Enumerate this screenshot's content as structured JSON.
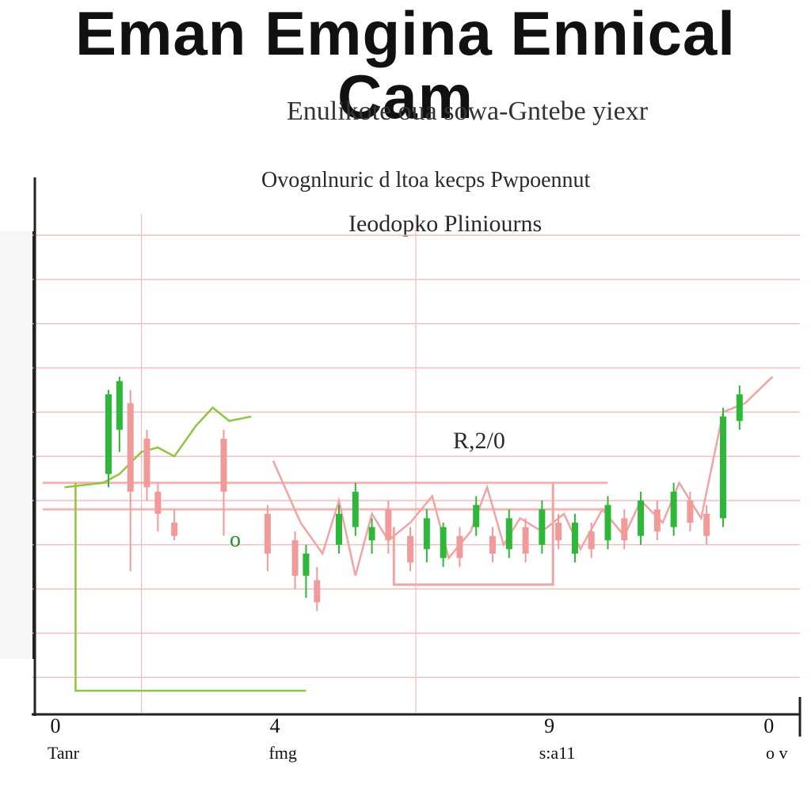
{
  "title": "Eman Emgina Ennical Cam",
  "subtitle": "Enulikote oua sowa-Gntebe yiexr",
  "notes": [
    "Ovognlnuric d ltoa kecps Pwpoennut",
    "Ieodopko Pliniourns"
  ],
  "annotations": [
    "R,2/0",
    "o"
  ],
  "x_ticks": [
    {
      "label": "0",
      "sub": "Tanr",
      "x": 0
    },
    {
      "label": "4",
      "sub": "fmg",
      "x": 4
    },
    {
      "label": "9",
      "sub": "s:a11",
      "x": 9
    },
    {
      "label": "0",
      "sub": "o v",
      "x": 13
    }
  ],
  "colors": {
    "up": "#2db83a",
    "down": "#f09a9a",
    "grid": "#f3bcbc",
    "axis": "#222222",
    "line_green": "#8dc63f",
    "line_pink": "#f2a3a3"
  },
  "chart_data": {
    "type": "line",
    "title": "Eman Emgina Ennical Cam",
    "subtitle": "Enulikote oua sowa-Gntebe yiexr",
    "xlabel": "",
    "ylabel": "",
    "xlim": [
      0,
      14
    ],
    "ylim": [
      0,
      12
    ],
    "grid": true,
    "legend": "none",
    "series": [
      {
        "values": [
          [
            0.6,
            5.1
          ],
          [
            1.3,
            5.2
          ],
          [
            1.6,
            5.4
          ],
          [
            2.0,
            5.9
          ],
          [
            2.3,
            6.0
          ],
          [
            2.6,
            5.8
          ],
          [
            3.0,
            6.5
          ],
          [
            3.3,
            6.9
          ],
          [
            3.6,
            6.6
          ],
          [
            4.0,
            6.7
          ]
        ]
      },
      {
        "values": [
          [
            4.4,
            5.7
          ],
          [
            4.9,
            4.3
          ],
          [
            5.3,
            3.6
          ],
          [
            5.6,
            4.8
          ],
          [
            5.9,
            3.1
          ],
          [
            6.2,
            4.5
          ],
          [
            6.5,
            3.9
          ],
          [
            6.9,
            4.3
          ],
          [
            7.3,
            4.9
          ],
          [
            7.6,
            3.5
          ],
          [
            8.0,
            4.1
          ],
          [
            8.3,
            5.1
          ],
          [
            8.6,
            3.8
          ],
          [
            8.9,
            4.4
          ],
          [
            9.3,
            4.1
          ],
          [
            9.7,
            4.5
          ],
          [
            10.0,
            3.7
          ],
          [
            10.4,
            4.6
          ],
          [
            10.8,
            4.0
          ],
          [
            11.1,
            4.8
          ],
          [
            11.5,
            4.3
          ],
          [
            11.8,
            5.2
          ],
          [
            12.2,
            4.4
          ],
          [
            12.6,
            6.8
          ],
          [
            13.0,
            7.0
          ],
          [
            13.5,
            7.6
          ]
        ]
      }
    ],
    "candles": [
      {
        "x": 1.4,
        "open": 5.4,
        "close": 7.2,
        "high": 7.3,
        "low": 5.1
      },
      {
        "x": 1.6,
        "open": 6.4,
        "close": 7.5,
        "high": 7.6,
        "low": 5.9
      },
      {
        "x": 1.8,
        "open": 7.0,
        "close": 5.0,
        "high": 7.3,
        "low": 3.2
      },
      {
        "x": 2.1,
        "open": 6.2,
        "close": 5.1,
        "high": 6.4,
        "low": 4.8
      },
      {
        "x": 2.3,
        "open": 5.0,
        "close": 4.5,
        "high": 5.2,
        "low": 4.1
      },
      {
        "x": 2.6,
        "open": 4.3,
        "close": 4.0,
        "high": 4.6,
        "low": 3.9
      },
      {
        "x": 3.5,
        "open": 6.2,
        "close": 5.0,
        "high": 6.4,
        "low": 4.0
      },
      {
        "x": 4.3,
        "open": 4.5,
        "close": 3.6,
        "high": 4.7,
        "low": 3.2
      },
      {
        "x": 4.8,
        "open": 3.9,
        "close": 3.1,
        "high": 4.1,
        "low": 2.8
      },
      {
        "x": 5.0,
        "open": 3.1,
        "close": 3.6,
        "high": 3.8,
        "low": 2.6
      },
      {
        "x": 5.2,
        "open": 3.0,
        "close": 2.5,
        "high": 3.3,
        "low": 2.3
      },
      {
        "x": 5.6,
        "open": 3.8,
        "close": 4.5,
        "high": 4.7,
        "low": 3.6
      },
      {
        "x": 5.9,
        "open": 4.2,
        "close": 5.0,
        "high": 5.2,
        "low": 4.0
      },
      {
        "x": 6.2,
        "open": 3.9,
        "close": 4.2,
        "high": 4.4,
        "low": 3.6
      },
      {
        "x": 6.5,
        "open": 4.6,
        "close": 3.9,
        "high": 4.8,
        "low": 3.6
      },
      {
        "x": 6.9,
        "open": 4.0,
        "close": 3.4,
        "high": 4.2,
        "low": 3.2
      },
      {
        "x": 7.2,
        "open": 3.7,
        "close": 4.4,
        "high": 4.6,
        "low": 3.4
      },
      {
        "x": 7.5,
        "open": 3.5,
        "close": 4.2,
        "high": 4.3,
        "low": 3.3
      },
      {
        "x": 7.8,
        "open": 4.0,
        "close": 3.5,
        "high": 4.2,
        "low": 3.3
      },
      {
        "x": 8.1,
        "open": 4.2,
        "close": 4.7,
        "high": 4.9,
        "low": 4.0
      },
      {
        "x": 8.4,
        "open": 4.0,
        "close": 3.6,
        "high": 4.2,
        "low": 3.4
      },
      {
        "x": 8.7,
        "open": 3.7,
        "close": 4.4,
        "high": 4.6,
        "low": 3.5
      },
      {
        "x": 9.0,
        "open": 4.2,
        "close": 3.6,
        "high": 4.4,
        "low": 3.4
      },
      {
        "x": 9.3,
        "open": 3.8,
        "close": 4.6,
        "high": 4.8,
        "low": 3.6
      },
      {
        "x": 9.6,
        "open": 4.3,
        "close": 3.9,
        "high": 4.5,
        "low": 3.7
      },
      {
        "x": 9.9,
        "open": 3.6,
        "close": 4.3,
        "high": 4.5,
        "low": 3.4
      },
      {
        "x": 10.2,
        "open": 4.1,
        "close": 3.7,
        "high": 4.3,
        "low": 3.5
      },
      {
        "x": 10.5,
        "open": 3.9,
        "close": 4.7,
        "high": 4.9,
        "low": 3.7
      },
      {
        "x": 10.8,
        "open": 4.4,
        "close": 3.9,
        "high": 4.6,
        "low": 3.7
      },
      {
        "x": 11.1,
        "open": 4.0,
        "close": 4.8,
        "high": 5.0,
        "low": 3.8
      },
      {
        "x": 11.4,
        "open": 4.6,
        "close": 4.1,
        "high": 4.8,
        "low": 3.9
      },
      {
        "x": 11.7,
        "open": 4.2,
        "close": 5.0,
        "high": 5.2,
        "low": 4.0
      },
      {
        "x": 12.0,
        "open": 4.8,
        "close": 4.3,
        "high": 5.0,
        "low": 4.1
      },
      {
        "x": 12.3,
        "open": 4.5,
        "close": 4.0,
        "high": 4.7,
        "low": 3.8
      },
      {
        "x": 12.6,
        "open": 4.4,
        "close": 6.7,
        "high": 6.9,
        "low": 4.2
      },
      {
        "x": 12.9,
        "open": 6.6,
        "close": 7.2,
        "high": 7.4,
        "low": 6.4
      }
    ],
    "reference_lines": [
      {
        "y": 5.2
      },
      {
        "y": 4.6
      }
    ]
  }
}
